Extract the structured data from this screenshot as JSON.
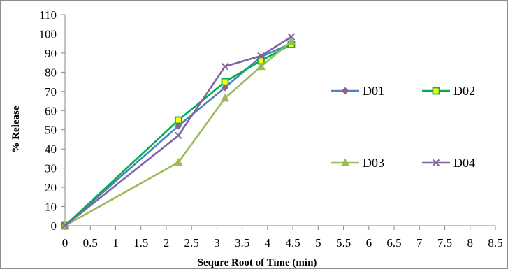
{
  "chart_data": {
    "type": "line",
    "xlabel": "Sequre Root of Time (min)",
    "ylabel": "% Release",
    "xlim": [
      0,
      8.5
    ],
    "ylim": [
      0,
      110
    ],
    "x_ticks": [
      "0",
      "0.5",
      "1",
      "1.5",
      "2",
      "2.5",
      "3",
      "3.5",
      "4",
      "4.5",
      "5",
      "5.5",
      "6",
      "6.5",
      "7",
      "7.5",
      "8",
      "8.5"
    ],
    "y_ticks": [
      "0",
      "10",
      "20",
      "30",
      "40",
      "50",
      "60",
      "70",
      "80",
      "90",
      "100",
      "110"
    ],
    "grid": false,
    "legend_position": "right",
    "series": [
      {
        "name": "D01",
        "color": "#4f81bd",
        "marker": "diamond",
        "fill": "#c0504d",
        "x": [
          0,
          2.24,
          3.16,
          3.87,
          4.47
        ],
        "y": [
          0,
          52,
          72,
          88,
          95
        ]
      },
      {
        "name": "D02",
        "color": "#00b050",
        "marker": "square",
        "fill": "#ffff00",
        "x": [
          0,
          2.24,
          3.16,
          3.87,
          4.47
        ],
        "y": [
          0,
          55,
          75,
          86,
          94.5
        ]
      },
      {
        "name": "D03",
        "color": "#9bbb59",
        "marker": "triangle",
        "fill": "#9bbb59",
        "x": [
          0,
          2.24,
          3.16,
          3.87,
          4.47
        ],
        "y": [
          0,
          33,
          66.5,
          83,
          96
        ]
      },
      {
        "name": "D04",
        "color": "#8064a2",
        "marker": "x",
        "fill": "#8064a2",
        "x": [
          0,
          2.24,
          3.16,
          3.87,
          4.47
        ],
        "y": [
          0,
          47,
          83,
          88.5,
          98.5
        ]
      }
    ]
  }
}
